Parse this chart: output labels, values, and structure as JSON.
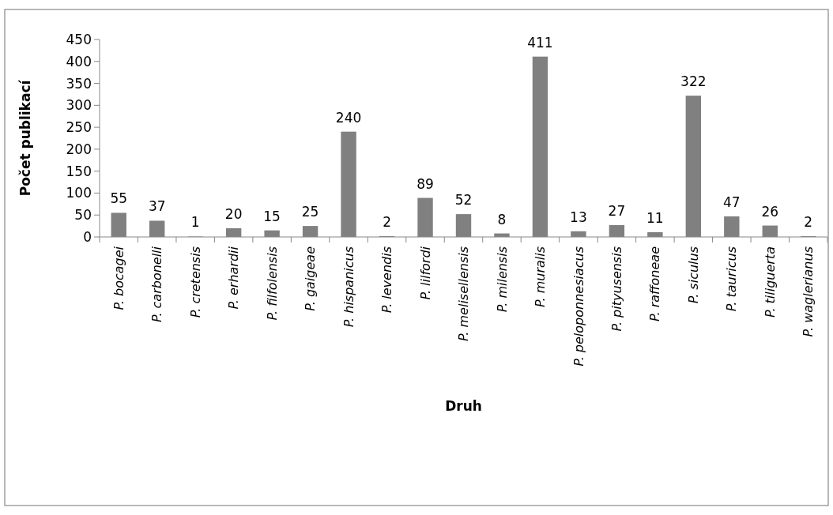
{
  "chart_data": {
    "type": "bar",
    "xlabel": "Druh",
    "ylabel": "Počet publikací",
    "categories": [
      "P. bocagei",
      "P. carbonelli",
      "P. cretensis",
      "P. erhardii",
      "P. filfolensis",
      "P. gaigeae",
      "P. hispanicus",
      "P. levendis",
      "P. lilfordi",
      "P. melisellensis",
      "P. milensis",
      "P. muralis",
      "P. peloponnesiacus",
      "P. pityusensis",
      "P. raffoneae",
      "P. siculus",
      "P. tauricus",
      "P. tiliguerta",
      "P. waglerianus"
    ],
    "values": [
      55,
      37,
      1,
      20,
      15,
      25,
      240,
      2,
      89,
      52,
      8,
      411,
      13,
      27,
      11,
      322,
      47,
      26,
      2
    ],
    "color": "#808080",
    "ylim": [
      0,
      450
    ],
    "yticks": [
      0,
      50,
      100,
      150,
      200,
      250,
      300,
      350,
      400,
      450
    ],
    "data_labels": true
  }
}
